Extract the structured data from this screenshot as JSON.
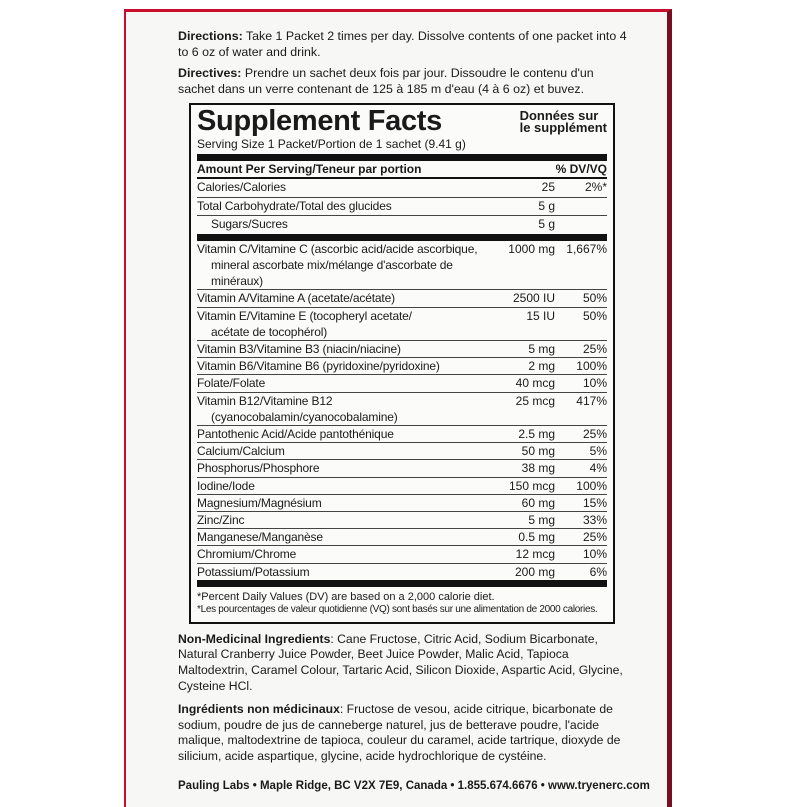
{
  "directions": {
    "label": "Directions:",
    "text": " Take 1 Packet 2 times per day. Dissolve contents of one packet into 4 to 6 oz of water and drink."
  },
  "directives": {
    "label": "Directives:",
    "text": " Prendre un sachet deux fois par jour. Dissoudre le contenu d'un sachet dans un verre contenant de 125 à 185 m d'eau (4 à 6 oz) et buvez."
  },
  "facts": {
    "title": "Supplement Facts",
    "title_fr_1": "Données sur",
    "title_fr_2": "le supplément",
    "serving": "Serving Size 1 Packet/Portion de 1 sachet (9.41 g)",
    "header_amount": "Amount Per Serving/Teneur par portion",
    "header_dv": "% DV/VQ",
    "top_rows": [
      {
        "name": "Calories/Calories",
        "amount": "25",
        "dv": "2%*"
      },
      {
        "name": "Total Carbohydrate/Total des glucides",
        "amount": "5 g",
        "dv": ""
      },
      {
        "name": "Sugars/Sucres",
        "amount": "5 g",
        "dv": ""
      }
    ],
    "rows": [
      {
        "name": "Vitamin C/Vitamine C (ascorbic acid/acide ascorbique,",
        "name2": "mineral ascorbate mix/mélange d'ascorbate de minéraux)",
        "amount": "1000 mg",
        "dv": "1,667%"
      },
      {
        "name": "Vitamin A/Vitamine A (acetate/acétate)",
        "amount": "2500 IU",
        "dv": "50%"
      },
      {
        "name": "Vitamin E/Vitamine E (tocopheryl acetate/",
        "name2": "acétate de tocophérol)",
        "amount": "15 IU",
        "dv": "50%"
      },
      {
        "name": "Vitamin B3/Vitamine B3 (niacin/niacine)",
        "amount": "5 mg",
        "dv": "25%"
      },
      {
        "name": "Vitamin B6/Vitamine B6 (pyridoxine/pyridoxine)",
        "amount": "2 mg",
        "dv": "100%"
      },
      {
        "name": "Folate/Folate",
        "amount": "40 mcg",
        "dv": "10%"
      },
      {
        "name": "Vitamin B12/Vitamine B12",
        "name2": "(cyanocobalamin/cyanocobalamine)",
        "amount": "25 mcg",
        "dv": "417%"
      },
      {
        "name": "Pantothenic Acid/Acide pantothénique",
        "amount": "2.5 mg",
        "dv": "25%"
      },
      {
        "name": "Calcium/Calcium",
        "amount": "50 mg",
        "dv": "5%"
      },
      {
        "name": "Phosphorus/Phosphore",
        "amount": "38 mg",
        "dv": "4%"
      },
      {
        "name": "Iodine/Iode",
        "amount": "150 mcg",
        "dv": "100%"
      },
      {
        "name": "Magnesium/Magnésium",
        "amount": "60 mg",
        "dv": "15%"
      },
      {
        "name": "Zinc/Zinc",
        "amount": "5 mg",
        "dv": "33%"
      },
      {
        "name": "Manganese/Manganèse",
        "amount": "0.5 mg",
        "dv": "25%"
      },
      {
        "name": "Chromium/Chrome",
        "amount": "12 mcg",
        "dv": "10%"
      },
      {
        "name": "Potassium/Potassium",
        "amount": "200 mg",
        "dv": "6%"
      }
    ],
    "footnote_en": "*Percent Daily Values (DV) are based on a 2,000 calorie diet.",
    "footnote_fr": "*Les pourcentages de valeur quotidienne (VQ) sont basés sur une alimentation de 2000 calories."
  },
  "ingredients": {
    "label": "Non-Medicinal Ingredients",
    "text": ": Cane Fructose, Citric Acid, Sodium Bicarbonate, Natural Cranberry Juice Powder, Beet Juice Powder, Malic Acid, Tapioca Maltodextrin, Caramel Colour, Tartaric Acid, Silicon Dioxide, Aspartic Acid, Glycine, Cysteine HCl."
  },
  "ingredients_fr": {
    "label": "Ingrédients non médicinaux",
    "text": ": Fructose de vesou, acide citrique, bicarbonate de sodium, poudre de jus de canneberge naturel, jus de betterave poudre, l'acide malique, maltodextrine de tapioca, couleur du caramel, acide tartrique, dioxyde de silicium, acide aspartique, glycine, acide hydrochlorique de cystéine."
  },
  "footer": "Pauling Labs • Maple Ridge, BC V2X 7E9, Canada • 1.855.674.6676 • www.tryenerc.com",
  "colors": {
    "edge": "#c8102e",
    "edge_dark": "#7a0e22"
  }
}
